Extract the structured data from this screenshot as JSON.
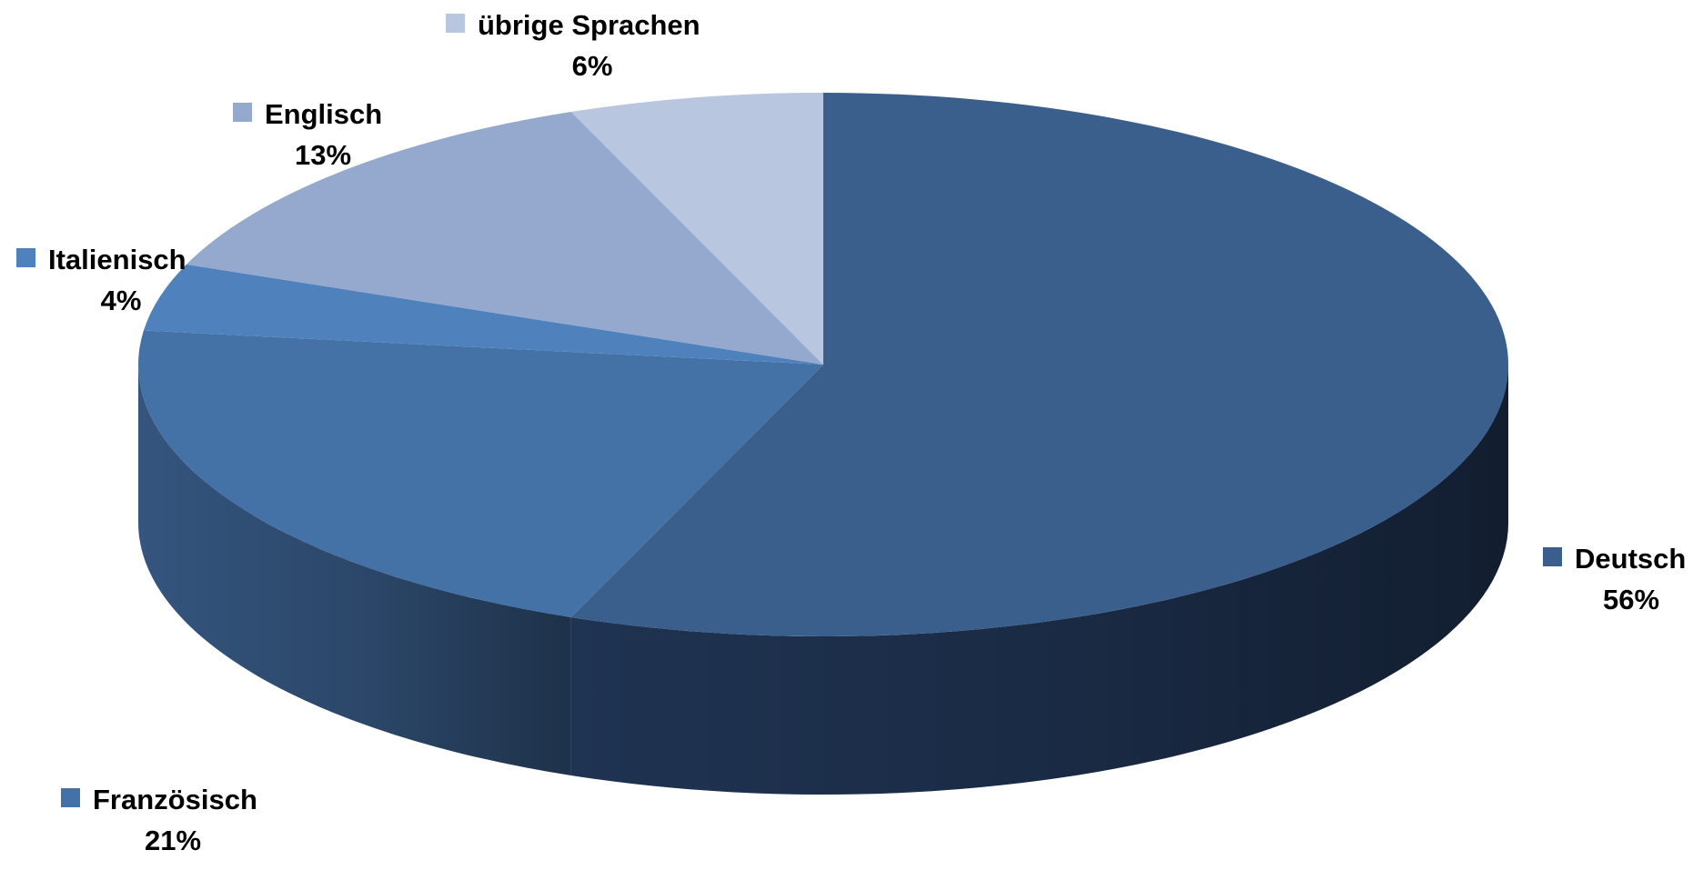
{
  "chart_data": {
    "type": "pie",
    "style": "3d",
    "title": "",
    "slices": [
      {
        "name": "Deutsch",
        "value": 56,
        "label": "56%",
        "color": "#3b5f8c",
        "side_color": "#1f3352"
      },
      {
        "name": "Französisch",
        "value": 21,
        "label": "21%",
        "color": "#4472a6",
        "side_color": "#34557e"
      },
      {
        "name": "Italienisch",
        "value": 4,
        "label": "4%",
        "color": "#4f81bd",
        "side_color": "#3b6290"
      },
      {
        "name": "Englisch",
        "value": 13,
        "label": "13%",
        "color": "#95a8ce",
        "side_color": "#6f84ad"
      },
      {
        "name": "übrige Sprachen",
        "value": 6,
        "label": "6%",
        "color": "#b9c6df",
        "side_color": "#8f9fc0"
      }
    ]
  }
}
